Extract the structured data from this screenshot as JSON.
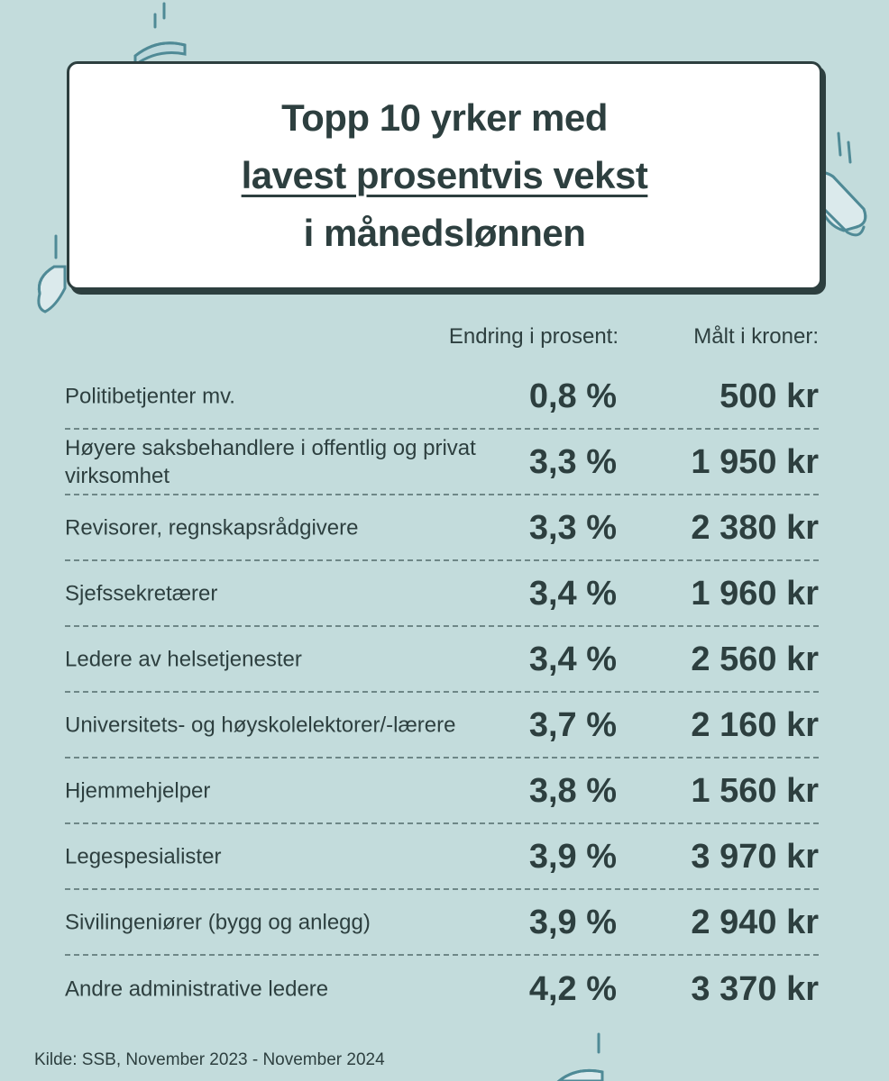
{
  "title": {
    "line1": "Topp 10 yrker med",
    "line2": "lavest prosentvis vekst",
    "line3": "i månedslønnen"
  },
  "headers": {
    "percent": "Endring i prosent:",
    "kroner": "Målt i kroner:"
  },
  "source": "Kilde: SSB, November 2023 - November 2024",
  "colors": {
    "background": "#c3dcdc",
    "text": "#2d3f3f",
    "box": "#ffffff",
    "divider": "#6e8787"
  },
  "chart_data": {
    "type": "table",
    "columns": [
      "Endring i prosent:",
      "Målt i kroner:"
    ],
    "rows": [
      {
        "occupation": "Politibetjenter mv.",
        "percent": "0,8 %",
        "kroner": "500 kr"
      },
      {
        "occupation": "Høyere saksbehandlere i offentlig og privat virksomhet",
        "percent": "3,3 %",
        "kroner": "1 950 kr"
      },
      {
        "occupation": "Revisorer, regnskapsrådgivere",
        "percent": "3,3 %",
        "kroner": "2 380 kr"
      },
      {
        "occupation": "Sjefssekretærer",
        "percent": "3,4 %",
        "kroner": "1 960 kr"
      },
      {
        "occupation": "Ledere av helsetjenester",
        "percent": "3,4 %",
        "kroner": "2 560 kr"
      },
      {
        "occupation": "Universitets- og høyskolelektorer/-lærere",
        "percent": "3,7 %",
        "kroner": "2 160 kr"
      },
      {
        "occupation": "Hjemmehjelper",
        "percent": "3,8 %",
        "kroner": "1 560 kr"
      },
      {
        "occupation": "Legespesialister",
        "percent": "3,9 %",
        "kroner": "3 970 kr"
      },
      {
        "occupation": "Sivilingeniører (bygg og anlegg)",
        "percent": "3,9 %",
        "kroner": "2 940 kr"
      },
      {
        "occupation": "Andre administrative ledere",
        "percent": "4,2 %",
        "kroner": "3 370 kr"
      }
    ]
  }
}
